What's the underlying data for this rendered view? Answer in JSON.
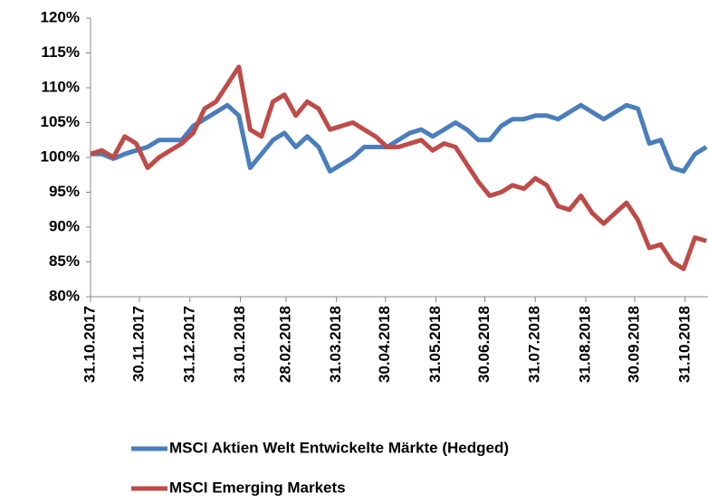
{
  "chart_data": {
    "type": "line",
    "x": [
      "31.10.2017",
      "07.11.2017",
      "14.11.2017",
      "21.11.2017",
      "28.11.2017",
      "05.12.2017",
      "12.12.2017",
      "19.12.2017",
      "26.12.2017",
      "02.01.2018",
      "09.01.2018",
      "16.01.2018",
      "23.01.2018",
      "30.01.2018",
      "06.02.2018",
      "13.02.2018",
      "20.02.2018",
      "27.02.2018",
      "06.03.2018",
      "13.03.2018",
      "20.03.2018",
      "27.03.2018",
      "03.04.2018",
      "10.04.2018",
      "17.04.2018",
      "24.04.2018",
      "01.05.2018",
      "08.05.2018",
      "15.05.2018",
      "22.05.2018",
      "29.05.2018",
      "05.06.2018",
      "12.06.2018",
      "19.06.2018",
      "26.06.2018",
      "03.07.2018",
      "10.07.2018",
      "17.07.2018",
      "24.07.2018",
      "31.07.2018",
      "07.08.2018",
      "14.08.2018",
      "21.08.2018",
      "28.08.2018",
      "04.09.2018",
      "11.09.2018",
      "18.09.2018",
      "25.09.2018",
      "02.10.2018",
      "09.10.2018",
      "16.10.2018",
      "23.10.2018",
      "30.10.2018",
      "06.11.2018",
      "13.11.2018"
    ],
    "series": [
      {
        "name": "MSCI Aktien Welt Entwickelte Märkte (Hedged)",
        "color": "#4a7ebb",
        "values": [
          100.5,
          100.5,
          99.8,
          100.5,
          101,
          101.5,
          102.5,
          102.5,
          102.5,
          104.5,
          105.5,
          106.5,
          107.5,
          106,
          98.5,
          100.5,
          102.5,
          103.5,
          101.5,
          103,
          101.5,
          98,
          99,
          100,
          101.5,
          101.5,
          101.5,
          102.5,
          103.5,
          104,
          103,
          104,
          105,
          104,
          102.5,
          102.5,
          104.5,
          105.5,
          105.5,
          106,
          106,
          105.5,
          106.5,
          107.5,
          106.5,
          105.5,
          106.5,
          107.5,
          107,
          102,
          102.5,
          98.5,
          98,
          100.5,
          101.5
        ]
      },
      {
        "name": "MSCI Emerging Markets",
        "color": "#be4b48",
        "values": [
          100.5,
          101,
          100,
          103,
          102,
          98.5,
          100,
          101,
          102,
          103.5,
          107,
          108,
          110.5,
          113,
          104,
          103,
          108,
          109,
          106,
          108,
          107,
          104,
          104.5,
          105,
          104,
          103,
          101.5,
          101.5,
          102,
          102.5,
          101,
          102,
          101.5,
          99,
          96.5,
          94.5,
          95,
          96,
          95.5,
          97,
          96,
          93,
          92.5,
          94.5,
          92,
          90.5,
          92,
          93.5,
          91,
          87,
          87.5,
          85,
          84,
          88.5,
          88
        ]
      }
    ],
    "xlim": [
      "31.10.2017",
      "14.11.2018"
    ],
    "xticks": [
      "31.10.2017",
      "30.11.2017",
      "31.12.2017",
      "31.01.2018",
      "28.02.2018",
      "31.03.2018",
      "30.04.2018",
      "31.05.2018",
      "30.06.2018",
      "31.07.2018",
      "31.08.2018",
      "30.09.2018",
      "31.10.2018"
    ],
    "ylim": [
      80,
      120
    ],
    "yticks": [
      {
        "value": 80,
        "label": "80%"
      },
      {
        "value": 85,
        "label": "85%"
      },
      {
        "value": 90,
        "label": "90%"
      },
      {
        "value": 95,
        "label": "95%"
      },
      {
        "value": 100,
        "label": "100%"
      },
      {
        "value": 105,
        "label": "105%"
      },
      {
        "value": 110,
        "label": "110%"
      },
      {
        "value": 115,
        "label": "115%"
      },
      {
        "value": 120,
        "label": "120%"
      }
    ]
  }
}
